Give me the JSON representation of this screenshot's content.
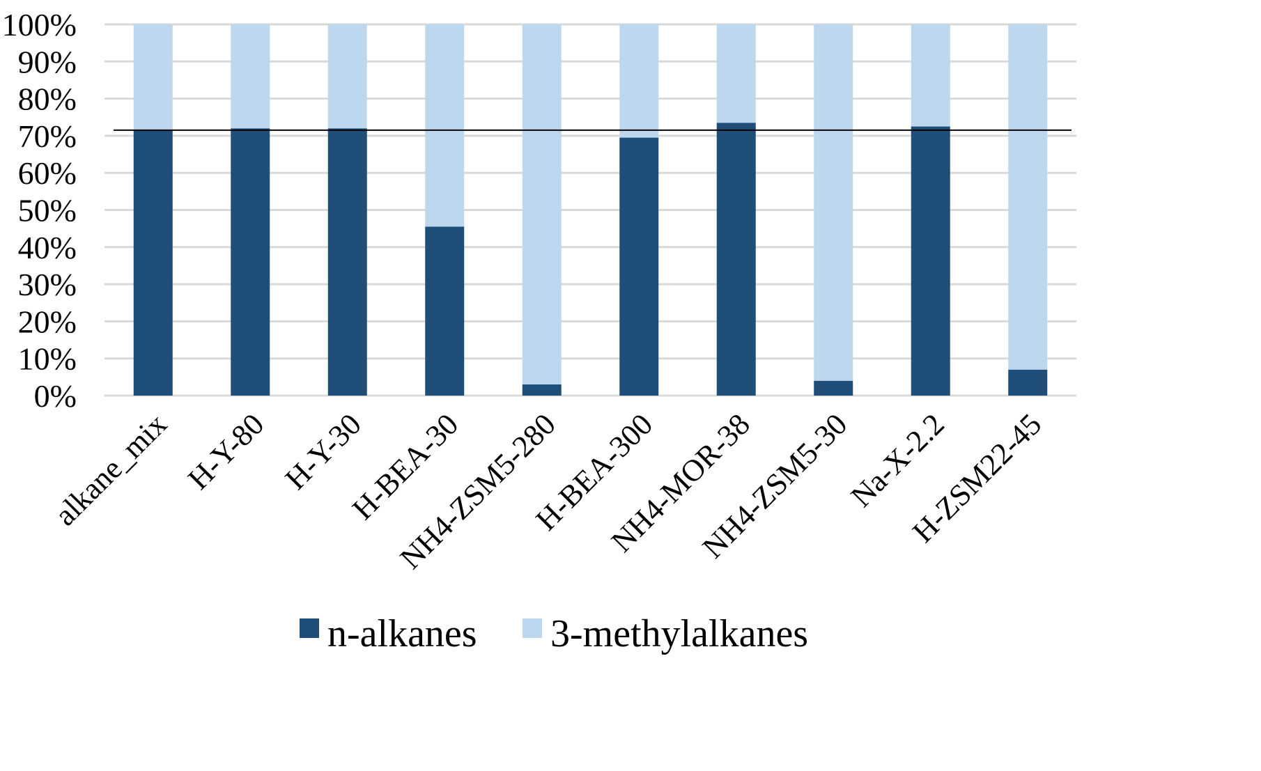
{
  "chart_data": {
    "type": "bar",
    "stacked": true,
    "categories": [
      "alkane_mix",
      "H-Y-80",
      "H-Y-30",
      "H-BEA-30",
      "NH4-ZSM5-280",
      "H-BEA-300",
      "NH4-MOR-38",
      "NH4-ZSM5-30",
      "Na-X-2.2",
      "H-ZSM22-45"
    ],
    "series": [
      {
        "name": "n-alkanes",
        "color": "#1f4e79",
        "values": [
          71.5,
          72,
          72,
          45.5,
          3,
          69.5,
          73.5,
          4,
          72.5,
          7
        ]
      },
      {
        "name": "3-methylalkanes",
        "color": "#bdd7ee",
        "values": [
          28.5,
          28,
          28,
          54.5,
          97,
          30.5,
          26.5,
          96,
          27.5,
          93
        ]
      }
    ],
    "reference_line": 71.5,
    "ylim": [
      0,
      100
    ],
    "yticks": [
      "0%",
      "10%",
      "20%",
      "30%",
      "40%",
      "50%",
      "60%",
      "70%",
      "80%",
      "90%",
      "100%"
    ],
    "grid": true,
    "legend_position": "bottom",
    "title": "",
    "xlabel": "",
    "ylabel": ""
  }
}
